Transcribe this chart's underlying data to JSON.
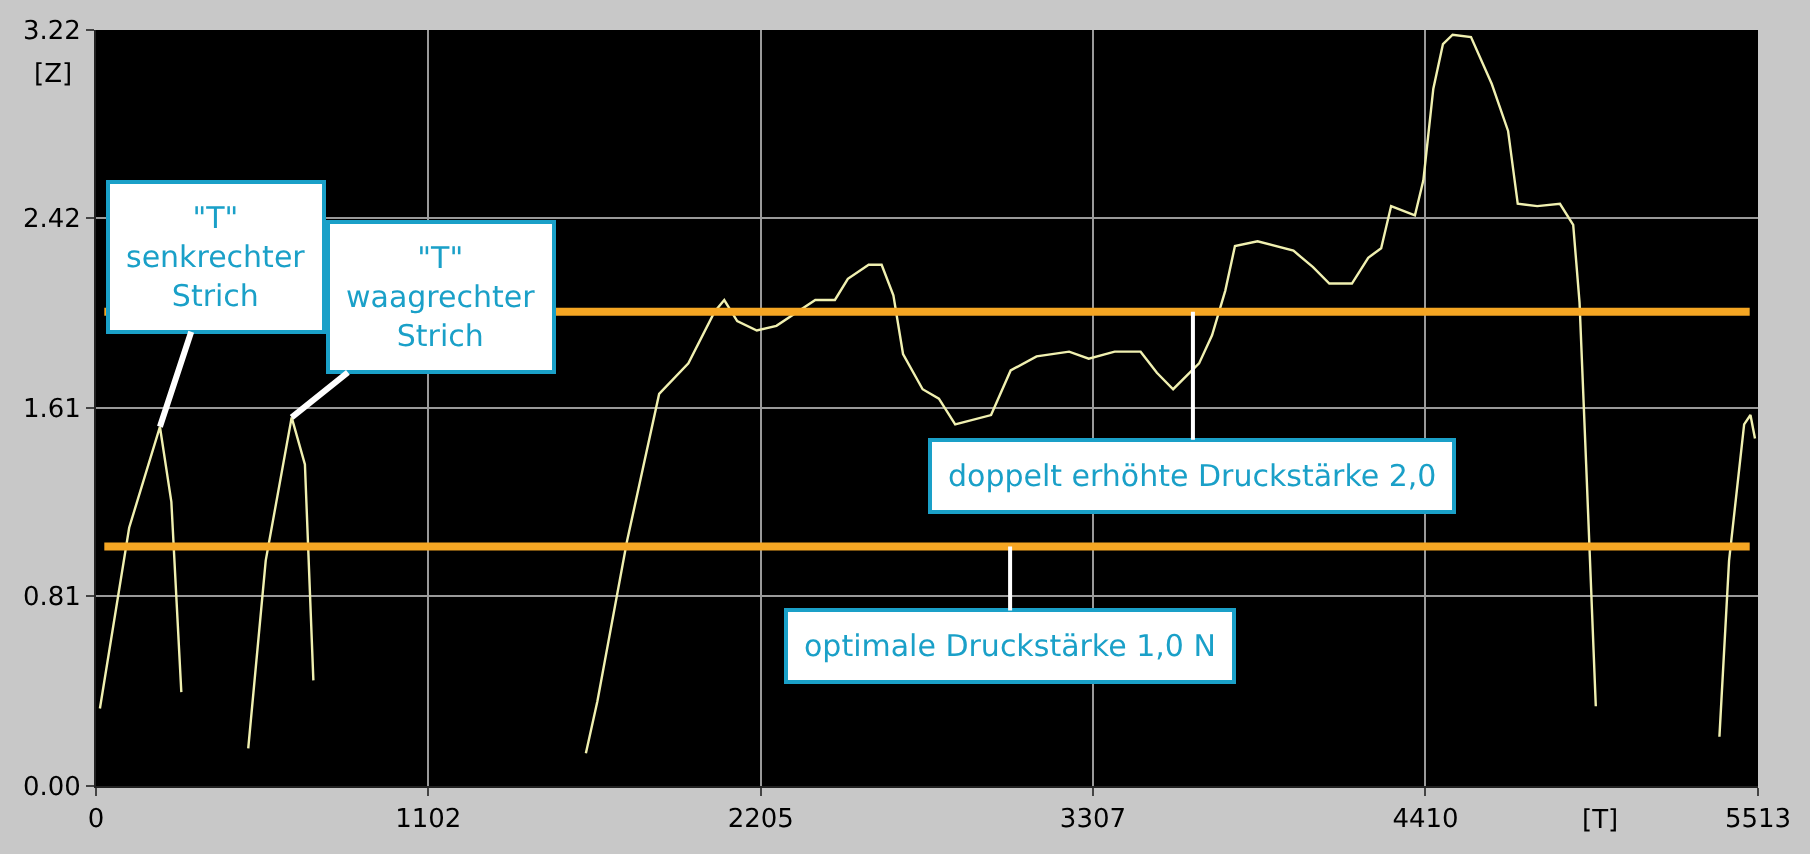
{
  "chart_data": {
    "type": "line",
    "xlabel": "[T]",
    "ylabel": "[Z]",
    "x": [
      13,
      110,
      212,
      250,
      283,
      null,
      505,
      563,
      649,
      693,
      721,
      null,
      1625,
      1663,
      1761,
      1868,
      1965,
      2052,
      2084,
      2127,
      2192,
      2257,
      2386,
      2451,
      2494,
      2563,
      2606,
      2645,
      2677,
      2742,
      2796,
      2850,
      2969,
      3034,
      3120,
      3228,
      3293,
      3379,
      3465,
      3519,
      3573,
      3659,
      3702,
      3746,
      3778,
      3853,
      3972,
      4037,
      4091,
      4166,
      4220,
      4263,
      4296,
      4375,
      4403,
      4436,
      4468,
      4500,
      4561,
      4630,
      4684,
      4716,
      4781,
      4856,
      4900,
      4921,
      4943,
      4975,
      null,
      5385,
      5417,
      5467,
      5488,
      5503
    ],
    "series": [
      {
        "color": "#f0f0b0",
        "values": [
          0.33,
          1.1,
          1.53,
          1.21,
          0.4,
          null,
          0.16,
          0.96,
          1.57,
          1.37,
          0.45,
          null,
          0.14,
          0.36,
          1.04,
          1.67,
          1.8,
          2.02,
          2.07,
          1.98,
          1.94,
          1.96,
          2.07,
          2.07,
          2.16,
          2.22,
          2.22,
          2.09,
          1.84,
          1.69,
          1.65,
          1.54,
          1.58,
          1.77,
          1.83,
          1.85,
          1.82,
          1.85,
          1.85,
          1.76,
          1.69,
          1.8,
          1.92,
          2.11,
          2.3,
          2.32,
          2.28,
          2.21,
          2.14,
          2.14,
          2.25,
          2.29,
          2.47,
          2.43,
          2.58,
          2.97,
          3.16,
          3.2,
          3.19,
          2.99,
          2.79,
          2.48,
          2.47,
          2.48,
          2.39,
          2.06,
          1.37,
          0.34,
          null,
          0.21,
          0.96,
          1.54,
          1.58,
          1.48
        ]
      }
    ],
    "xlim": [
      0,
      5513
    ],
    "xticks": [
      0,
      1102,
      2205,
      3307,
      4410,
      5513
    ],
    "ylim": [
      0,
      3.22
    ],
    "yticks": [
      {
        "value": 0,
        "label": "0.00"
      },
      0.81,
      1.61,
      2.42,
      3.22
    ],
    "grid": true,
    "line_style": "solid",
    "ref_lines": [
      {
        "axis": "y",
        "value": 1.02,
        "label": "optimale Druckstärke 1,0 N",
        "color": "#f5a623"
      },
      {
        "axis": "y",
        "value": 2.02,
        "label": "doppelt erhöhte Druckstärke 2,0",
        "color": "#f5a623"
      }
    ],
    "annotations": [
      {
        "text": "\"T\"\nsenkrechter\nStrich",
        "x": 212,
        "y": 1.53
      },
      {
        "text": "\"T\"\nwaagrechter\nStrich",
        "x": 649,
        "y": 1.57
      }
    ]
  }
}
